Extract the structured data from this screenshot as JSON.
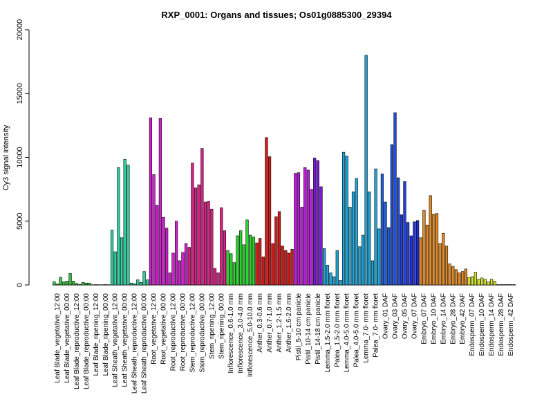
{
  "chart_data": {
    "type": "bar",
    "title": "RXP_0001: Organs and tissues; Os01g0885300_29394",
    "xlabel": "",
    "ylabel": "Cy3 signal intensity",
    "ylim": [
      0,
      20000
    ],
    "yticks": [
      0,
      5000,
      10000,
      15000,
      20000
    ],
    "grid": false,
    "legend": "none",
    "groups": [
      {
        "label": "Leaf Blade_vegetative_12:00",
        "color": "#33c43c",
        "values": [
          250,
          80,
          600
        ]
      },
      {
        "label": "Leaf Blade_vegetative_00:00",
        "color": "#33c43c",
        "values": [
          250,
          300,
          900
        ]
      },
      {
        "label": "Leaf Blade_reproductive_12:00",
        "color": "#33c43c",
        "values": [
          300,
          120,
          50
        ]
      },
      {
        "label": "Leaf Blade_reproductive_00:00",
        "color": "#33c43c",
        "values": [
          200,
          150,
          150
        ]
      },
      {
        "label": "Leaf Blade_ripening_12:00",
        "color": "#33c43c",
        "values": [
          20,
          30,
          20
        ]
      },
      {
        "label": "Leaf Blade_ripening_00:00",
        "color": "#33c43c",
        "values": [
          20,
          30,
          20
        ]
      },
      {
        "label": "Leaf Sheath_vegetative_12:00",
        "color": "#2fd39e",
        "values": [
          4300,
          2600,
          9200
        ]
      },
      {
        "label": "Leaf Sheath_vegetative_00:00",
        "color": "#2fd39e",
        "values": [
          3700,
          9850,
          9400
        ]
      },
      {
        "label": "Leaf Sheath_reproductive_12:00",
        "color": "#2fd39e",
        "values": [
          150,
          100,
          400
        ]
      },
      {
        "label": "Leaf Sheath_reproductive_00:00",
        "color": "#2fd39e",
        "values": [
          200,
          1050,
          400
        ]
      },
      {
        "label": "Root_vegetative_12:00",
        "color": "#d21fd2",
        "values": [
          13100,
          8650,
          6250
        ]
      },
      {
        "label": "Root_vegetative_00:00",
        "color": "#d21fd2",
        "values": [
          13050,
          5300,
          4450
        ]
      },
      {
        "label": "Root_reproductive_12:00",
        "color": "#d21fd2",
        "values": [
          950,
          2500,
          5000
        ]
      },
      {
        "label": "Root_reproductive_00:00",
        "color": "#d21fd2",
        "values": [
          1900,
          2550,
          3250
        ]
      },
      {
        "label": "Stem_reproductive_12:00",
        "color": "#dd1f86",
        "values": [
          2950,
          9550,
          7600
        ]
      },
      {
        "label": "Stem_reproductive_00:00",
        "color": "#dd1f86",
        "values": [
          7850,
          10700,
          6500
        ]
      },
      {
        "label": "Stem_ripening_12:00",
        "color": "#dd1f86",
        "values": [
          6550,
          5950,
          1300
        ]
      },
      {
        "label": "Stem_ripening_00:00",
        "color": "#dd1f86",
        "values": [
          950,
          6050,
          4250
        ]
      },
      {
        "label": "Inflorescence_0.6-1.0 mm",
        "color": "#29d629",
        "values": [
          2700,
          2450,
          1750
        ]
      },
      {
        "label": "Inflorescence_3.0-4.0 mm",
        "color": "#29d629",
        "values": [
          3850,
          4250,
          3150
        ]
      },
      {
        "label": "Inflorescence_5.0-10.0 mm",
        "color": "#29d629",
        "values": [
          5100,
          3900,
          3750
        ]
      },
      {
        "label": "Anther_0.3-0.6 mm",
        "color": "#d81919",
        "values": [
          3300,
          3650,
          2200
        ]
      },
      {
        "label": "Anther_0.7-1.0 mm",
        "color": "#d81919",
        "values": [
          11550,
          10050,
          3250
        ]
      },
      {
        "label": "Anther_1.2-1.5 mm",
        "color": "#d81919",
        "values": [
          5350,
          5750,
          3050
        ]
      },
      {
        "label": "Anther_1.6-2.0 mm",
        "color": "#d81919",
        "values": [
          2700,
          2500,
          2800
        ]
      },
      {
        "label": "Pistil_5-10 cm panicle",
        "color": "#c019e0",
        "values": [
          8750,
          8800,
          6100
        ]
      },
      {
        "label": "Pistil_10-14 cm panicle",
        "color": "#c019e0",
        "values": [
          9200,
          9000,
          7500
        ]
      },
      {
        "label": "Pistil_14-18 cm panicle",
        "color": "#7c19d8",
        "values": [
          9950,
          9750,
          7700
        ]
      },
      {
        "label": "Lemma_1.5-2.0 mm floret",
        "color": "#20a6d8",
        "values": [
          2850,
          1550,
          950
        ]
      },
      {
        "label": "Palea_1.5-2.0 mm floret",
        "color": "#20a6d8",
        "values": [
          650,
          2700,
          350
        ]
      },
      {
        "label": "Lemma_4.0-5.0 mm floret",
        "color": "#20a6d8",
        "values": [
          10400,
          10100,
          6100
        ]
      },
      {
        "label": "Palea_4.0-5.0 mm floret",
        "color": "#20a6d8",
        "values": [
          7300,
          8350,
          3000
        ]
      },
      {
        "label": "Lemma_7.0- mm floret",
        "color": "#20a6d8",
        "values": [
          3900,
          18000,
          7300
        ]
      },
      {
        "label": "Palea_7.0- mm floret",
        "color": "#20a6d8",
        "values": [
          1900,
          9100,
          4400
        ]
      },
      {
        "label": "Ovary_01 DAF",
        "color": "#1f5ee0",
        "values": [
          8700,
          6500,
          4500
        ]
      },
      {
        "label": "Ovary_03 DAF",
        "color": "#1f4ee0",
        "values": [
          11000,
          13500,
          8400
        ]
      },
      {
        "label": "Ovary_05 DAF",
        "color": "#1f3ee0",
        "values": [
          5500,
          8100,
          4900
        ]
      },
      {
        "label": "Ovary_07 DAF",
        "color": "#1f2ee0",
        "values": [
          3850,
          4950,
          5050
        ]
      },
      {
        "label": "Embryo_07 DAF",
        "color": "#e38a22",
        "values": [
          3700,
          5850,
          4700
        ]
      },
      {
        "label": "Embryo_10 DAF",
        "color": "#e38a22",
        "values": [
          7000,
          5550,
          5600
        ]
      },
      {
        "label": "Embryo_14 DAF",
        "color": "#e38a22",
        "values": [
          3250,
          4050,
          3050
        ]
      },
      {
        "label": "Embryo_28 DAF",
        "color": "#e38a22",
        "values": [
          1650,
          1450,
          1200
        ]
      },
      {
        "label": "Embryo_42 DAF",
        "color": "#e38a22",
        "values": [
          950,
          1050,
          1250
        ]
      },
      {
        "label": "Endosperm_07 DAF",
        "color": "#d6e62a",
        "values": [
          600,
          650,
          1000
        ]
      },
      {
        "label": "Endosperm_10 DAF",
        "color": "#d6e62a",
        "values": [
          450,
          550,
          450
        ]
      },
      {
        "label": "Endosperm_14 DAF",
        "color": "#d6e62a",
        "values": [
          250,
          450,
          300
        ]
      },
      {
        "label": "Endosperm_28 DAF",
        "color": "#d6e62a",
        "values": [
          30,
          30,
          30
        ]
      },
      {
        "label": "Endosperm_42 DAF",
        "color": "#d6e62a",
        "values": [
          30,
          30,
          30
        ]
      }
    ]
  }
}
